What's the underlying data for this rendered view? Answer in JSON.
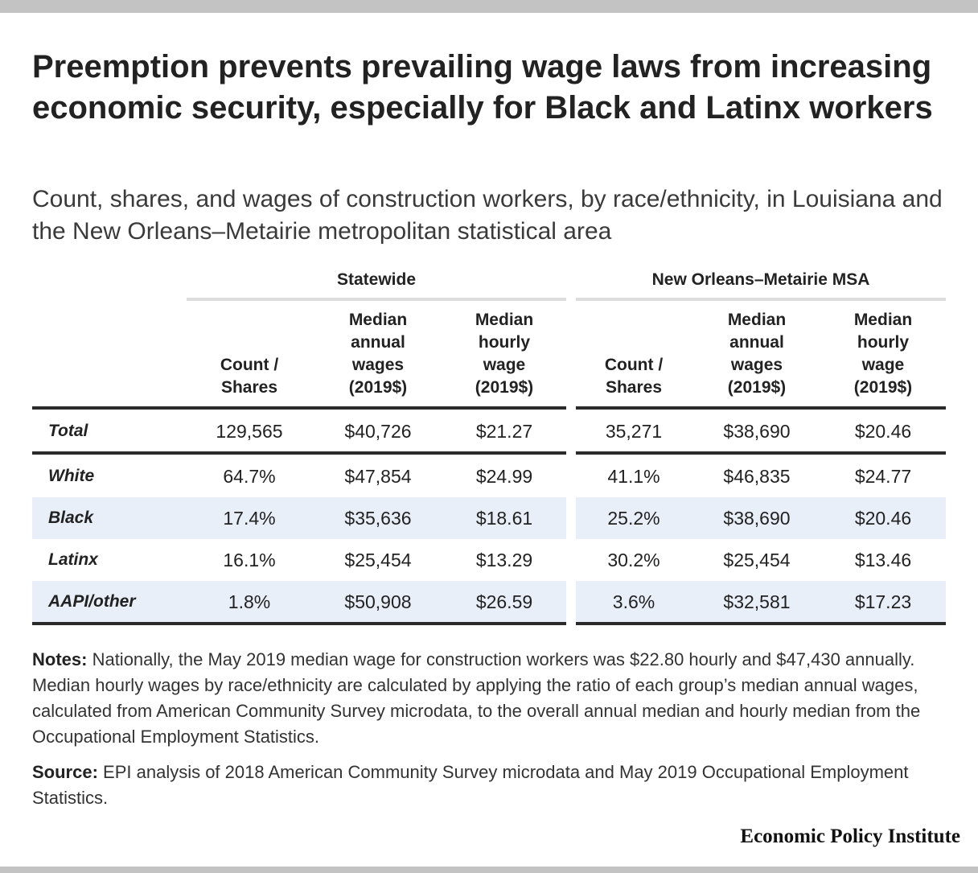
{
  "title": "Preemption prevents prevailing wage laws from increasing economic security, especially for Black and Latinx workers",
  "subtitle": "Count, shares, and wages of construction workers, by race/ethnicity, in Louisiana and the New Orleans–Metairie metropolitan statistical area",
  "groups": [
    "Statewide",
    "New Orleans–Metairie MSA"
  ],
  "headers": {
    "count": [
      "Count /",
      "Shares"
    ],
    "annual": [
      "Median",
      "annual",
      "wages",
      "(2019$)"
    ],
    "hourly": [
      "Median",
      "hourly",
      "wage",
      "(2019$)"
    ]
  },
  "chart_data": {
    "type": "table",
    "title": "Preemption prevents prevailing wage laws from increasing economic security, especially for Black and Latinx workers",
    "column_groups": [
      {
        "name": "Statewide",
        "columns": [
          "Count / Shares",
          "Median annual wages (2019$)",
          "Median hourly wage (2019$)"
        ]
      },
      {
        "name": "New Orleans–Metairie MSA",
        "columns": [
          "Count / Shares",
          "Median annual wages (2019$)",
          "Median hourly wage (2019$)"
        ]
      }
    ],
    "rows": [
      {
        "label": "Total",
        "statewide": [
          "129,565",
          "$40,726",
          "$21.27"
        ],
        "msa": [
          "35,271",
          "$38,690",
          "$20.46"
        ]
      },
      {
        "label": "White",
        "statewide": [
          "64.7%",
          "$47,854",
          "$24.99"
        ],
        "msa": [
          "41.1%",
          "$46,835",
          "$24.77"
        ]
      },
      {
        "label": "Black",
        "statewide": [
          "17.4%",
          "$35,636",
          "$18.61"
        ],
        "msa": [
          "25.2%",
          "$38,690",
          "$20.46"
        ]
      },
      {
        "label": "Latinx",
        "statewide": [
          "16.1%",
          "$25,454",
          "$13.29"
        ],
        "msa": [
          "30.2%",
          "$25,454",
          "$13.46"
        ]
      },
      {
        "label": "AAPI/other",
        "statewide": [
          "1.8%",
          "$50,908",
          "$26.59"
        ],
        "msa": [
          "3.6%",
          "$32,581",
          "$17.23"
        ]
      }
    ]
  },
  "notes": {
    "label": "Notes:",
    "text": " Nationally, the May 2019 median wage for construction workers was $22.80 hourly and $47,430 annually. Median hourly wages by race/ethnicity are calculated by applying the ratio of each group’s median annual wages, calculated from American Community Survey microdata, to the overall annual median and hourly median from the Occupational Employment Statistics."
  },
  "source": {
    "label": "Source:",
    "text": " EPI analysis of 2018 American Community Survey microdata and May 2019 Occupational Employment Statistics."
  },
  "logo": "Economic Policy Institute",
  "colors": {
    "row_shade": "#e8eff8",
    "rule_dark": "#2b2b2b",
    "rule_light": "#dcdcdc",
    "frame_bar": "#c3c3c3"
  }
}
